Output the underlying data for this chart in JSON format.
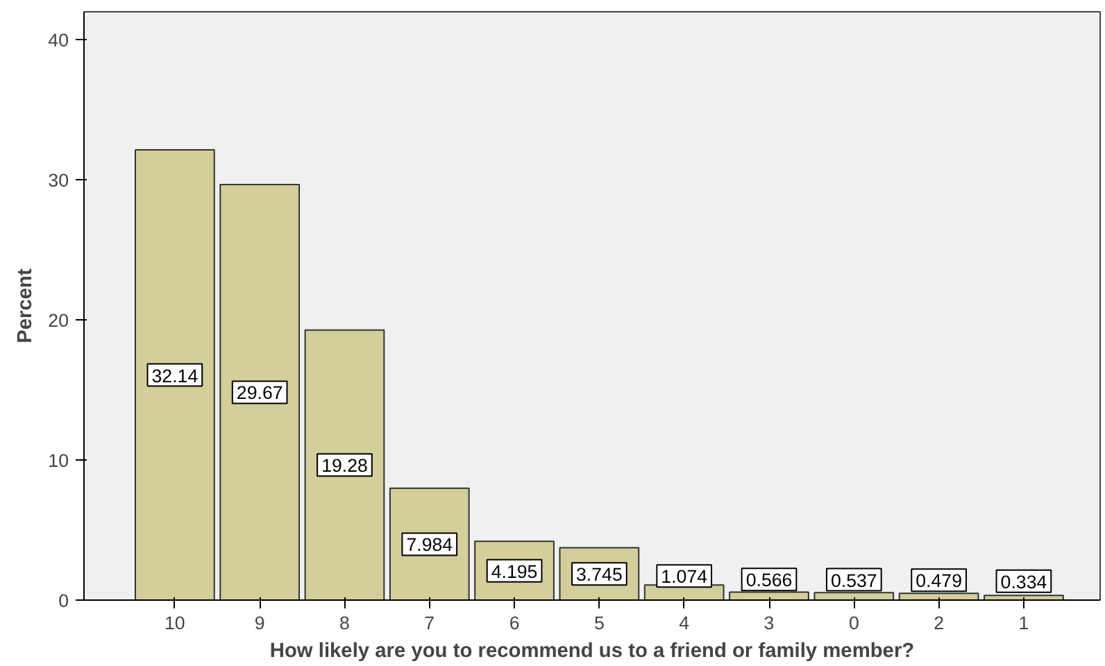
{
  "chart_data": {
    "type": "bar",
    "xlabel": "How likely are you to recommend us to a friend or family member?",
    "ylabel": "Percent",
    "categories": [
      "10",
      "9",
      "8",
      "7",
      "6",
      "5",
      "4",
      "3",
      "0",
      "2",
      "1"
    ],
    "values": [
      32.14,
      29.67,
      19.28,
      7.984,
      4.195,
      3.745,
      1.074,
      0.566,
      0.537,
      0.479,
      0.334
    ],
    "color": "#d3ce9a",
    "ylim": [
      0,
      42
    ],
    "yticks": [
      0,
      10,
      20,
      30,
      40
    ],
    "grid": false,
    "data_labels": true
  }
}
